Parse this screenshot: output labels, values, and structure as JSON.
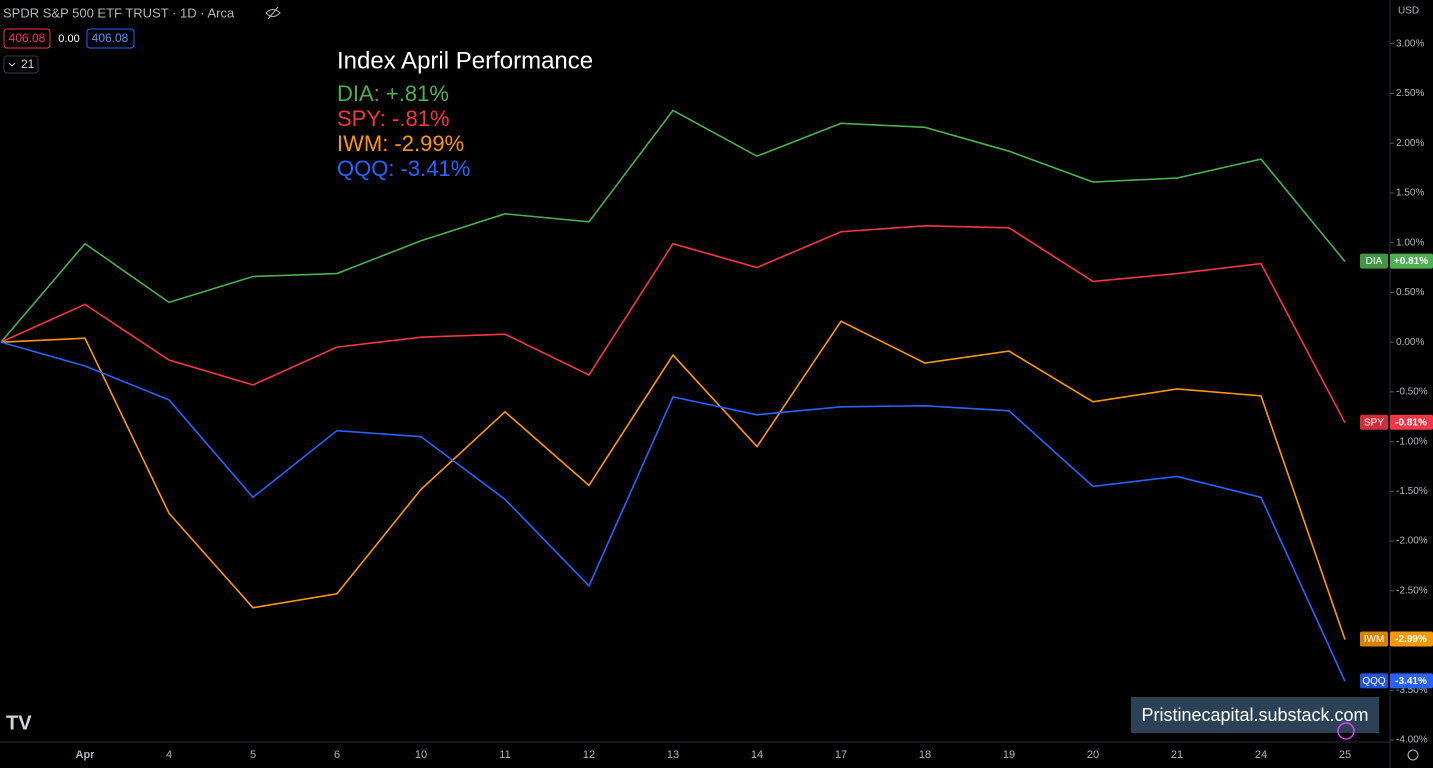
{
  "ui": {
    "symbol": "SPDR S&P 500 ETF TRUST · 1D · Arca",
    "bid": "406.08",
    "spread": "0.00",
    "ask": "406.08",
    "interval_count": "21",
    "currency": "USD",
    "watermark": "Pristinecapital.substack.com"
  },
  "chart_data": {
    "type": "line",
    "title": "Index April Performance",
    "annotations": [
      "DIA: +.81%",
      "SPY: -.81%",
      "IWM: -2.99%",
      "QQQ: -3.41%"
    ],
    "categories": [
      null,
      "Apr",
      "4",
      "5",
      "6",
      "10",
      "11",
      "12",
      "13",
      "14",
      "17",
      "18",
      "19",
      "20",
      "21",
      "24",
      "25"
    ],
    "series": [
      {
        "name": "DIA",
        "color": "#4caf50",
        "last_label": "+0.81%",
        "values": [
          0,
          0.99,
          0.4,
          0.66,
          0.69,
          1.02,
          1.29,
          1.21,
          2.33,
          1.87,
          2.2,
          2.16,
          1.92,
          1.61,
          1.65,
          1.84,
          0.81
        ]
      },
      {
        "name": "SPY",
        "color": "#f23645",
        "last_label": "-0.81%",
        "values": [
          0,
          0.38,
          -0.18,
          -0.43,
          -0.05,
          0.05,
          0.08,
          -0.33,
          0.99,
          0.75,
          1.11,
          1.17,
          1.15,
          0.61,
          0.69,
          0.79,
          -0.81
        ]
      },
      {
        "name": "IWM",
        "color": "#ff9800",
        "last_label": "-2.99%",
        "values": [
          0,
          0.04,
          -1.72,
          -2.67,
          -2.53,
          -1.48,
          -0.7,
          -1.44,
          -0.13,
          -1.05,
          0.21,
          -0.21,
          -0.09,
          -0.6,
          -0.47,
          -0.54,
          -2.99
        ]
      },
      {
        "name": "QQQ",
        "color": "#2962ff",
        "last_label": "-3.41%",
        "values": [
          0,
          -0.24,
          -0.58,
          -1.56,
          -0.89,
          -0.95,
          -1.58,
          -2.45,
          -0.55,
          -0.73,
          -0.65,
          -0.64,
          -0.69,
          -1.45,
          -1.35,
          -1.56,
          -3.41
        ]
      }
    ],
    "ylim": [
      -4.02,
      3.44
    ],
    "yticks": [
      {
        "value": 3,
        "label": "3.00%"
      },
      {
        "value": 2.5,
        "label": "2.50%"
      },
      {
        "value": 2,
        "label": "2.00%"
      },
      {
        "value": 1.5,
        "label": "1.50%"
      },
      {
        "value": 1,
        "label": "1.00%"
      },
      {
        "value": 0.5,
        "label": "0.50%"
      },
      {
        "value": 0,
        "label": "0.00%"
      },
      {
        "value": -0.5,
        "label": "-0.50%"
      },
      {
        "value": -1,
        "label": "-1.00%"
      },
      {
        "value": -1.5,
        "label": "-1.50%"
      },
      {
        "value": -2,
        "label": "-2.00%"
      },
      {
        "value": -2.5,
        "label": "-2.50%"
      },
      {
        "value": -3,
        "label": "-3.00%"
      },
      {
        "value": -3.5,
        "label": "-3.50%"
      },
      {
        "value": -4,
        "label": "-4.00%"
      }
    ],
    "grid": false
  }
}
